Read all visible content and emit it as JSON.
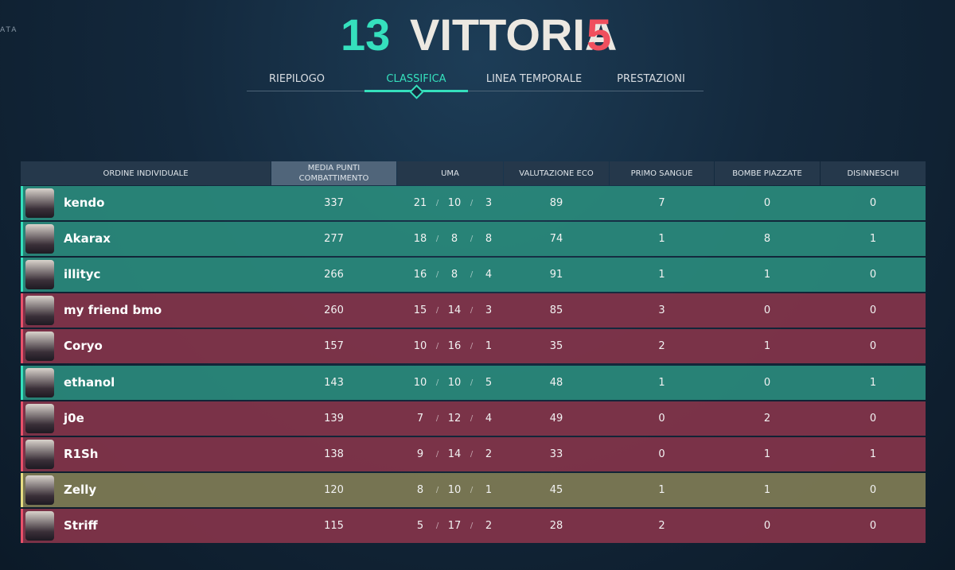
{
  "corner_text": "ATA",
  "header": {
    "score_left": "13",
    "result": "VITTORIA",
    "score_right": "5"
  },
  "tabs": [
    {
      "label": "RIEPILOGO",
      "active": false
    },
    {
      "label": "CLASSIFICA",
      "active": true
    },
    {
      "label": "LINEA TEMPORALE",
      "active": false
    },
    {
      "label": "PRESTAZIONI",
      "active": false
    }
  ],
  "table": {
    "columns": [
      [
        "ORDINE INDIVIDUALE"
      ],
      [
        "MEDIA PUNTI",
        "COMBATTIMENTO"
      ],
      [
        "UMA"
      ],
      [
        "VALUTAZIONE ECO"
      ],
      [
        "PRIMO SANGUE"
      ],
      [
        "BOMBE PIAZZATE"
      ],
      [
        "DISINNESCHI"
      ]
    ],
    "kda_separator": "/",
    "rows": [
      {
        "name": "kendo",
        "color": "#2a8a7c",
        "accent": "#35e0bd",
        "acs": 337,
        "kda": [
          21,
          10,
          3
        ],
        "eco": 89,
        "first_blood": 7,
        "plants": 0,
        "defuses": 0
      },
      {
        "name": "Akarax",
        "color": "#2a8a7c",
        "accent": "#35e0bd",
        "acs": 277,
        "kda": [
          18,
          8,
          8
        ],
        "eco": 74,
        "first_blood": 1,
        "plants": 8,
        "defuses": 1
      },
      {
        "name": "illityc",
        "color": "#2a8a7c",
        "accent": "#35e0bd",
        "acs": 266,
        "kda": [
          16,
          8,
          4
        ],
        "eco": 91,
        "first_blood": 1,
        "plants": 1,
        "defuses": 0
      },
      {
        "name": "my friend bmo",
        "color": "#83344a",
        "accent": "#e8506a",
        "acs": 260,
        "kda": [
          15,
          14,
          3
        ],
        "eco": 85,
        "first_blood": 3,
        "plants": 0,
        "defuses": 0
      },
      {
        "name": "Coryo",
        "color": "#83344a",
        "accent": "#e8506a",
        "acs": 157,
        "kda": [
          10,
          16,
          1
        ],
        "eco": 35,
        "first_blood": 2,
        "plants": 1,
        "defuses": 0
      },
      {
        "name": "ethanol",
        "color": "#2a8a7c",
        "accent": "#35e0bd",
        "acs": 143,
        "kda": [
          10,
          10,
          5
        ],
        "eco": 48,
        "first_blood": 1,
        "plants": 0,
        "defuses": 1
      },
      {
        "name": "j0e",
        "color": "#83344a",
        "accent": "#e8506a",
        "acs": 139,
        "kda": [
          7,
          12,
          4
        ],
        "eco": 49,
        "first_blood": 0,
        "plants": 2,
        "defuses": 0
      },
      {
        "name": "R1Sh",
        "color": "#83344a",
        "accent": "#e8506a",
        "acs": 138,
        "kda": [
          9,
          14,
          2
        ],
        "eco": 33,
        "first_blood": 0,
        "plants": 1,
        "defuses": 1
      },
      {
        "name": "Zelly",
        "color": "#7f7c55",
        "accent": "#e6dc82",
        "acs": 120,
        "kda": [
          8,
          10,
          1
        ],
        "eco": 45,
        "first_blood": 1,
        "plants": 1,
        "defuses": 0
      },
      {
        "name": "Striff",
        "color": "#83344a",
        "accent": "#e8506a",
        "acs": 115,
        "kda": [
          5,
          17,
          2
        ],
        "eco": 28,
        "first_blood": 2,
        "plants": 0,
        "defuses": 0
      }
    ]
  }
}
